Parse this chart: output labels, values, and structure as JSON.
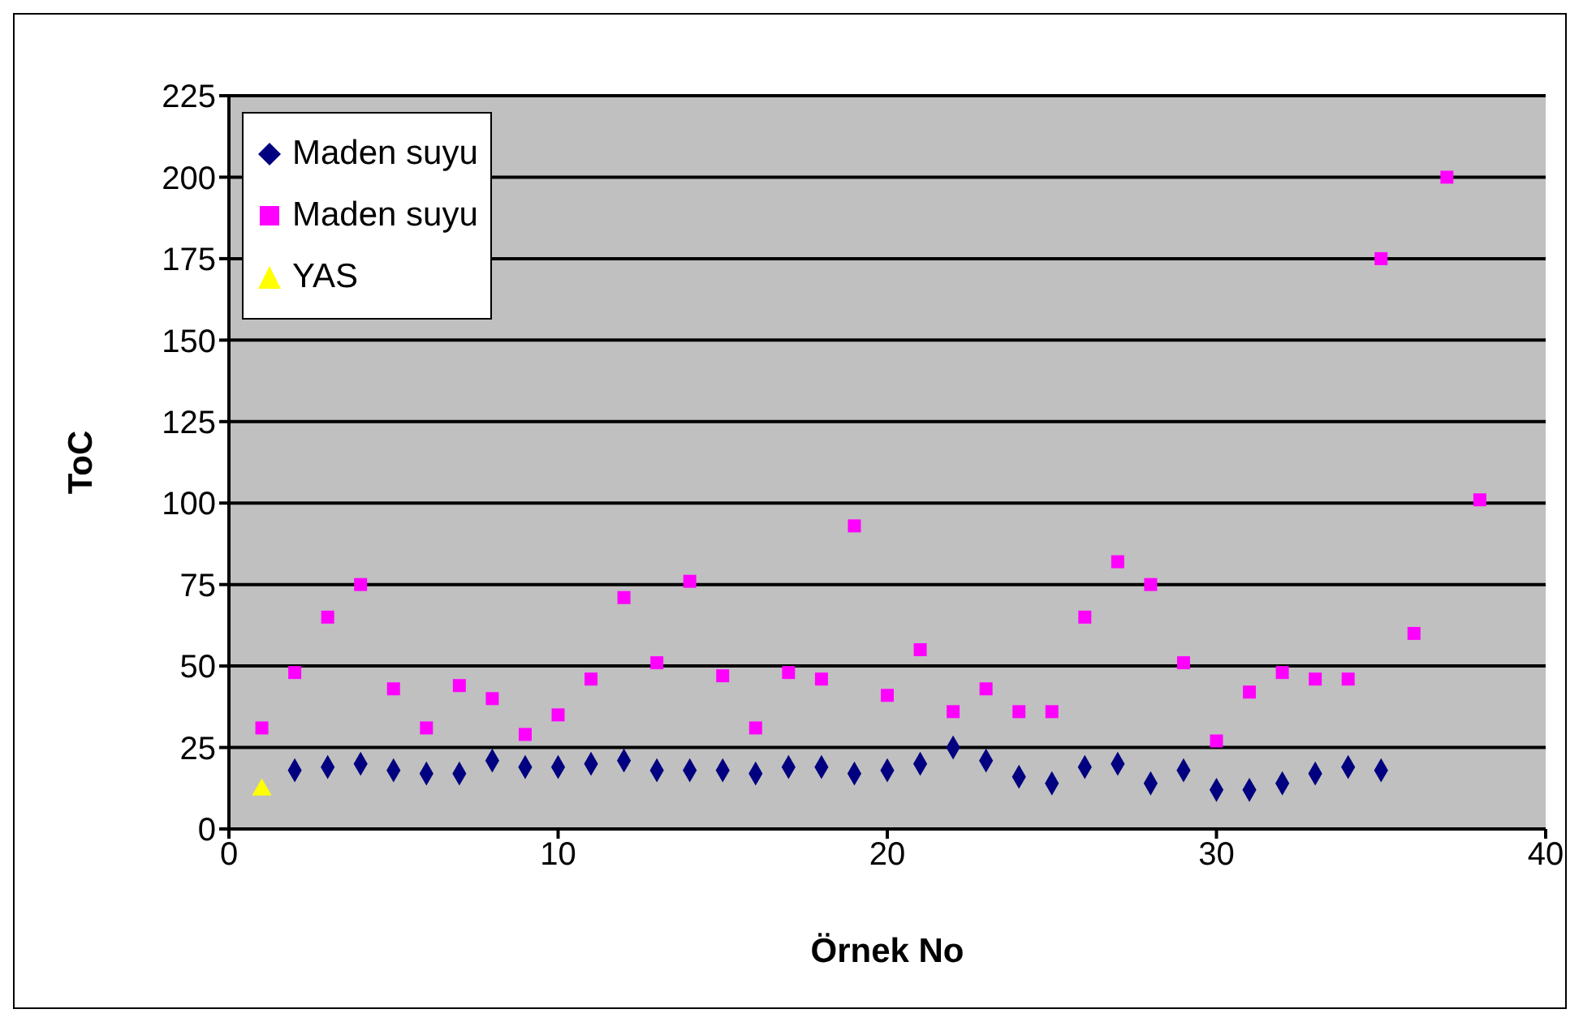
{
  "chart_data": {
    "type": "scatter",
    "xlabel": "Örnek No",
    "ylabel": "ToC",
    "xlim": [
      0,
      40
    ],
    "xticks": [
      0,
      10,
      20,
      30,
      40
    ],
    "ylim": [
      0,
      225
    ],
    "yticks": [
      0,
      25,
      50,
      75,
      100,
      125,
      150,
      175,
      200,
      225
    ],
    "grid": "y",
    "legend": "top left",
    "series": [
      {
        "name": "Maden suyu",
        "color": "#000080",
        "marker": "diamond",
        "x": [
          2,
          3,
          4,
          5,
          6,
          7,
          8,
          9,
          10,
          11,
          12,
          13,
          14,
          15,
          16,
          17,
          18,
          19,
          20,
          21,
          22,
          23,
          24,
          25,
          26,
          27,
          28,
          29,
          30,
          31,
          32,
          33,
          34,
          35
        ],
        "values": [
          18,
          19,
          20,
          18,
          17,
          17,
          21,
          19,
          19,
          20,
          21,
          18,
          18,
          18,
          17,
          19,
          19,
          17,
          18,
          20,
          25,
          21,
          16,
          14,
          19,
          20,
          14,
          18,
          12,
          12,
          14,
          17,
          19,
          18
        ]
      },
      {
        "name": "Maden suyu",
        "color": "#ff00ff",
        "marker": "square",
        "x": [
          1,
          2,
          3,
          4,
          5,
          6,
          7,
          8,
          9,
          10,
          11,
          12,
          13,
          14,
          15,
          16,
          17,
          18,
          19,
          20,
          21,
          22,
          23,
          24,
          25,
          26,
          27,
          28,
          29,
          30,
          31,
          32,
          33,
          34,
          35,
          36,
          37,
          38
        ],
        "values": [
          31,
          48,
          65,
          75,
          43,
          31,
          44,
          40,
          29,
          35,
          46,
          71,
          51,
          76,
          47,
          31,
          48,
          46,
          93,
          41,
          55,
          36,
          43,
          36,
          36,
          65,
          82,
          75,
          51,
          27,
          42,
          48,
          46,
          46,
          175,
          60,
          200,
          101
        ]
      },
      {
        "name": "YAS",
        "color": "#ffff00",
        "marker": "triangle",
        "x": [
          1
        ],
        "values": [
          12
        ]
      }
    ]
  }
}
